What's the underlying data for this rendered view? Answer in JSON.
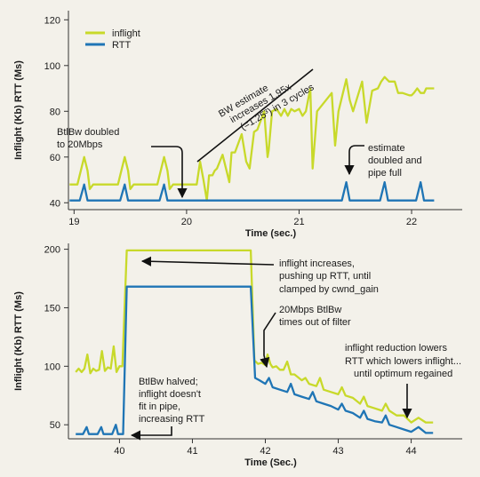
{
  "colors": {
    "inflight": "#c8d92a",
    "rtt": "#1f75b5",
    "axis": "#333333",
    "annotation": "#111111",
    "background": "#f3f1ea"
  },
  "chart_data": [
    {
      "type": "line",
      "xlabel": "Time (sec.)",
      "ylabel": "Inflight (Kb) RTT (Ms)",
      "xlim": [
        18.95,
        22.45
      ],
      "ylim": [
        37,
        124
      ],
      "x_ticks": [
        19,
        20,
        21,
        22
      ],
      "y_ticks": [
        40,
        60,
        80,
        100,
        120
      ],
      "legend": {
        "placement": "top-left",
        "entries": [
          "inflight",
          "RTT"
        ]
      },
      "grid": false,
      "annotations": [
        {
          "text": "BtlBw doubled\nto 20Mbps"
        },
        {
          "text": "BW estimate\nincreases 1.95x\n(=1.25³) in 3 cycles"
        },
        {
          "text": "estimate\ndoubled and\npipe full"
        }
      ],
      "series": [
        {
          "name": "inflight",
          "points": [
            [
              18.96,
              48
            ],
            [
              19.03,
              48
            ],
            [
              19.06,
              54
            ],
            [
              19.09,
              60
            ],
            [
              19.12,
              54
            ],
            [
              19.14,
              46
            ],
            [
              19.17,
              48
            ],
            [
              19.39,
              48
            ],
            [
              19.42,
              54
            ],
            [
              19.45,
              60
            ],
            [
              19.48,
              54
            ],
            [
              19.5,
              46
            ],
            [
              19.53,
              48
            ],
            [
              19.74,
              48
            ],
            [
              19.77,
              54
            ],
            [
              19.8,
              60
            ],
            [
              19.83,
              54
            ],
            [
              19.85,
              46
            ],
            [
              19.88,
              48
            ],
            [
              20.09,
              48
            ],
            [
              20.12,
              58
            ],
            [
              20.15,
              50
            ],
            [
              20.18,
              41
            ],
            [
              20.2,
              52
            ],
            [
              20.23,
              52
            ],
            [
              20.25,
              54
            ],
            [
              20.27,
              55
            ],
            [
              20.32,
              61
            ],
            [
              20.36,
              53
            ],
            [
              20.38,
              49
            ],
            [
              20.4,
              62
            ],
            [
              20.43,
              62
            ],
            [
              20.49,
              70
            ],
            [
              20.53,
              58
            ],
            [
              20.56,
              55
            ],
            [
              20.6,
              71
            ],
            [
              20.63,
              72
            ],
            [
              20.69,
              80
            ],
            [
              20.72,
              60
            ],
            [
              20.73,
              63
            ],
            [
              20.76,
              80
            ],
            [
              20.8,
              81
            ],
            [
              20.84,
              78
            ],
            [
              20.87,
              81
            ],
            [
              20.9,
              78
            ],
            [
              20.93,
              81
            ],
            [
              20.96,
              80
            ],
            [
              21.0,
              81
            ],
            [
              21.03,
              78
            ],
            [
              21.06,
              80
            ],
            [
              21.1,
              90
            ],
            [
              21.12,
              55
            ],
            [
              21.16,
              80
            ],
            [
              21.29,
              88
            ],
            [
              21.32,
              65
            ],
            [
              21.35,
              80
            ],
            [
              21.42,
              94
            ],
            [
              21.45,
              85
            ],
            [
              21.48,
              80
            ],
            [
              21.56,
              93
            ],
            [
              21.6,
              75
            ],
            [
              21.65,
              89
            ],
            [
              21.7,
              90
            ],
            [
              21.73,
              93
            ],
            [
              21.76,
              95
            ],
            [
              21.8,
              93
            ],
            [
              21.85,
              93
            ],
            [
              21.88,
              88
            ],
            [
              21.92,
              88
            ],
            [
              21.98,
              87
            ],
            [
              22.0,
              87
            ],
            [
              22.02,
              88
            ],
            [
              22.05,
              90
            ],
            [
              22.08,
              88
            ],
            [
              22.11,
              88
            ],
            [
              22.13,
              90
            ],
            [
              22.16,
              90
            ],
            [
              22.18,
              90
            ],
            [
              22.2,
              90
            ]
          ]
        },
        {
          "name": "RTT",
          "points": [
            [
              18.96,
              41
            ],
            [
              19.05,
              41
            ],
            [
              19.09,
              48
            ],
            [
              19.12,
              41
            ],
            [
              19.41,
              41
            ],
            [
              19.45,
              48
            ],
            [
              19.48,
              41
            ],
            [
              19.76,
              41
            ],
            [
              19.8,
              48
            ],
            [
              19.83,
              41
            ],
            [
              20.2,
              41
            ],
            [
              20.6,
              41
            ],
            [
              21.0,
              41
            ],
            [
              21.38,
              41
            ],
            [
              21.42,
              49
            ],
            [
              21.45,
              41
            ],
            [
              21.72,
              41
            ],
            [
              21.76,
              49
            ],
            [
              21.79,
              41
            ],
            [
              22.04,
              41
            ],
            [
              22.08,
              49
            ],
            [
              22.11,
              41
            ],
            [
              22.2,
              41
            ]
          ]
        }
      ]
    },
    {
      "type": "line",
      "xlabel": "Time (Sec.)",
      "ylabel": "Inflight (Kb) RTT (Ms)",
      "xlim": [
        39.3,
        44.7
      ],
      "ylim": [
        38,
        205
      ],
      "x_ticks": [
        40,
        41,
        42,
        43,
        44
      ],
      "y_ticks": [
        50,
        100,
        150,
        200
      ],
      "grid": false,
      "annotations": [
        {
          "text": "inflight increases,\npushing up RTT, until\nclamped by cwnd_gain"
        },
        {
          "text": "20Mbps BtlBw\ntimes out of filter"
        },
        {
          "text": "inflight reduction lowers\nRTT which lowers inflight...\nuntil optimum regained"
        },
        {
          "text": "BtlBw halved;\ninflight doesn't\nfit in pipe,\nincreasing RTT"
        }
      ],
      "series": [
        {
          "name": "inflight",
          "points": [
            [
              39.4,
              95
            ],
            [
              39.44,
              98
            ],
            [
              39.48,
              95
            ],
            [
              39.52,
              98
            ],
            [
              39.56,
              110
            ],
            [
              39.6,
              94
            ],
            [
              39.64,
              98
            ],
            [
              39.68,
              96
            ],
            [
              39.72,
              97
            ],
            [
              39.76,
              113
            ],
            [
              39.8,
              96
            ],
            [
              39.84,
              99
            ],
            [
              39.88,
              98
            ],
            [
              39.92,
              117
            ],
            [
              39.96,
              95
            ],
            [
              40.0,
              100
            ],
            [
              40.04,
              100
            ],
            [
              40.1,
              199
            ],
            [
              41.0,
              199
            ],
            [
              41.8,
              199
            ],
            [
              41.85,
              105
            ],
            [
              41.9,
              102
            ],
            [
              41.95,
              103
            ],
            [
              42.0,
              101
            ],
            [
              42.03,
              110
            ],
            [
              42.07,
              102
            ],
            [
              42.1,
              99
            ],
            [
              42.15,
              100
            ],
            [
              42.2,
              97
            ],
            [
              42.25,
              97
            ],
            [
              42.3,
              104
            ],
            [
              42.35,
              93
            ],
            [
              42.4,
              93
            ],
            [
              42.5,
              88
            ],
            [
              42.55,
              90
            ],
            [
              42.6,
              85
            ],
            [
              42.7,
              83
            ],
            [
              42.75,
              90
            ],
            [
              42.8,
              80
            ],
            [
              42.9,
              78
            ],
            [
              43.0,
              76
            ],
            [
              43.05,
              82
            ],
            [
              43.1,
              75
            ],
            [
              43.2,
              73
            ],
            [
              43.3,
              68
            ],
            [
              43.35,
              74
            ],
            [
              43.4,
              66
            ],
            [
              43.5,
              64
            ],
            [
              43.6,
              62
            ],
            [
              43.65,
              68
            ],
            [
              43.7,
              62
            ],
            [
              43.8,
              58
            ],
            [
              43.9,
              58
            ],
            [
              44.0,
              52
            ],
            [
              44.1,
              56
            ],
            [
              44.2,
              52
            ],
            [
              44.3,
              52
            ]
          ]
        },
        {
          "name": "RTT",
          "points": [
            [
              39.4,
              42
            ],
            [
              39.5,
              42
            ],
            [
              39.55,
              48
            ],
            [
              39.58,
              42
            ],
            [
              39.7,
              42
            ],
            [
              39.75,
              48
            ],
            [
              39.78,
              42
            ],
            [
              39.9,
              42
            ],
            [
              39.95,
              50
            ],
            [
              39.98,
              42
            ],
            [
              40.05,
              42
            ],
            [
              40.1,
              168
            ],
            [
              41.0,
              168
            ],
            [
              41.8,
              168
            ],
            [
              41.86,
              90
            ],
            [
              41.92,
              88
            ],
            [
              42.0,
              85
            ],
            [
              42.05,
              90
            ],
            [
              42.1,
              82
            ],
            [
              42.2,
              80
            ],
            [
              42.3,
              78
            ],
            [
              42.35,
              85
            ],
            [
              42.4,
              76
            ],
            [
              42.5,
              74
            ],
            [
              42.6,
              72
            ],
            [
              42.65,
              78
            ],
            [
              42.7,
              70
            ],
            [
              42.8,
              68
            ],
            [
              42.9,
              66
            ],
            [
              43.0,
              63
            ],
            [
              43.05,
              68
            ],
            [
              43.1,
              62
            ],
            [
              43.2,
              60
            ],
            [
              43.3,
              56
            ],
            [
              43.35,
              62
            ],
            [
              43.4,
              55
            ],
            [
              43.5,
              53
            ],
            [
              43.6,
              52
            ],
            [
              43.65,
              58
            ],
            [
              43.7,
              50
            ],
            [
              43.8,
              48
            ],
            [
              43.9,
              46
            ],
            [
              44.0,
              44
            ],
            [
              44.1,
              48
            ],
            [
              44.2,
              43
            ],
            [
              44.3,
              43
            ]
          ]
        }
      ]
    }
  ]
}
